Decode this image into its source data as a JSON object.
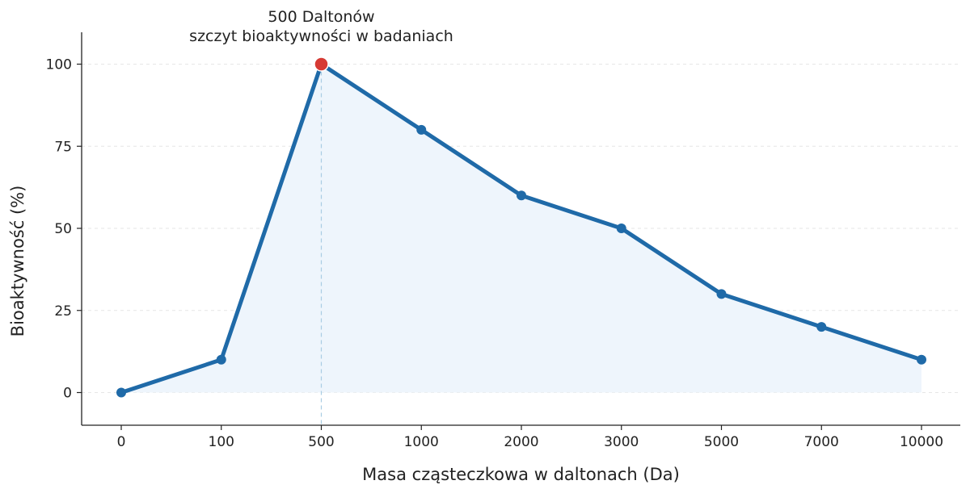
{
  "colors": {
    "line": "#1f6aa8",
    "area_fill": "#eef5fc",
    "peak_marker": "#d63a34",
    "axis": "#222222",
    "grid": "#e6e6e6",
    "guide": "#a9cce3"
  },
  "chart_data": {
    "type": "line",
    "title": "",
    "xlabel": "Masa cząsteczkowa w daltonach (Da)",
    "ylabel": "Bioaktywność (%)",
    "categories": [
      "0",
      "100",
      "500",
      "1000",
      "2000",
      "3000",
      "5000",
      "7000",
      "10000"
    ],
    "series": [
      {
        "values": [
          0,
          10,
          100,
          80,
          60,
          50,
          30,
          20,
          10
        ]
      }
    ],
    "ylim": [
      -10,
      110
    ],
    "yticks": [
      0,
      25,
      50,
      75,
      100
    ],
    "grid": "horizontal-dashed",
    "area_under_line": true,
    "annotation": {
      "category": "500",
      "value": 100,
      "line1": "500 Daltonów",
      "line2": "szczyt bioaktywności w badaniach"
    }
  }
}
